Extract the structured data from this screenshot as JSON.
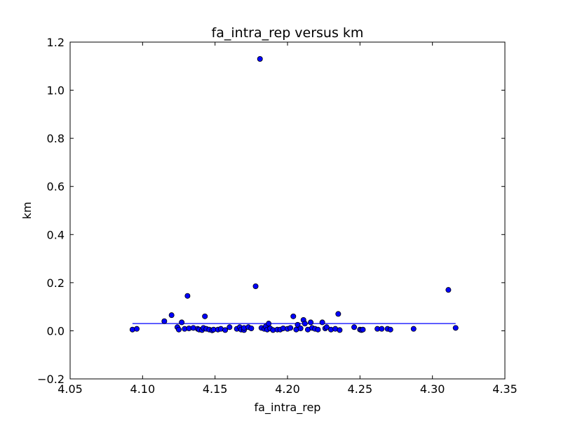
{
  "chart_data": {
    "type": "scatter",
    "title": "fa_intra_rep versus km",
    "xlabel": "fa_intra_rep",
    "ylabel": "km",
    "xlim": [
      4.05,
      4.35
    ],
    "ylim": [
      -0.2,
      1.2
    ],
    "x_ticks": [
      "4.05",
      "4.10",
      "4.15",
      "4.20",
      "4.25",
      "4.30",
      "4.35"
    ],
    "y_ticks": [
      "−0.2",
      "0.0",
      "0.2",
      "0.4",
      "0.6",
      "0.8",
      "1.0",
      "1.2"
    ],
    "grid": false,
    "marker_color": "#0000ff",
    "line_color": "#0000ff",
    "fit_line": {
      "x": [
        4.093,
        4.316
      ],
      "y": [
        0.03,
        0.03
      ]
    },
    "points": [
      [
        4.093,
        0.005
      ],
      [
        4.096,
        0.008
      ],
      [
        4.115,
        0.04
      ],
      [
        4.12,
        0.065
      ],
      [
        4.124,
        0.015
      ],
      [
        4.125,
        0.005
      ],
      [
        4.127,
        0.035
      ],
      [
        4.129,
        0.008
      ],
      [
        4.131,
        0.145
      ],
      [
        4.132,
        0.01
      ],
      [
        4.135,
        0.012
      ],
      [
        4.138,
        0.008
      ],
      [
        4.139,
        0.005
      ],
      [
        4.141,
        0.003
      ],
      [
        4.142,
        0.012
      ],
      [
        4.143,
        0.06
      ],
      [
        4.144,
        0.008
      ],
      [
        4.146,
        0.005
      ],
      [
        4.148,
        0.002
      ],
      [
        4.149,
        0.005
      ],
      [
        4.152,
        0.005
      ],
      [
        4.154,
        0.008
      ],
      [
        4.157,
        0.003
      ],
      [
        4.16,
        0.015
      ],
      [
        4.165,
        0.008
      ],
      [
        4.167,
        0.015
      ],
      [
        4.168,
        0.005
      ],
      [
        4.17,
        0.003
      ],
      [
        4.17,
        0.012
      ],
      [
        4.173,
        0.015
      ],
      [
        4.175,
        0.01
      ],
      [
        4.178,
        0.185
      ],
      [
        4.181,
        1.13
      ],
      [
        4.182,
        0.012
      ],
      [
        4.184,
        0.008
      ],
      [
        4.185,
        0.018
      ],
      [
        4.186,
        0.005
      ],
      [
        4.187,
        0.03
      ],
      [
        4.188,
        0.01
      ],
      [
        4.19,
        0.003
      ],
      [
        4.193,
        0.005
      ],
      [
        4.195,
        0.005
      ],
      [
        4.197,
        0.01
      ],
      [
        4.2,
        0.008
      ],
      [
        4.202,
        0.012
      ],
      [
        4.204,
        0.06
      ],
      [
        4.206,
        0.005
      ],
      [
        4.207,
        0.025
      ],
      [
        4.209,
        0.01
      ],
      [
        4.211,
        0.045
      ],
      [
        4.212,
        0.03
      ],
      [
        4.214,
        0.005
      ],
      [
        4.216,
        0.035
      ],
      [
        4.217,
        0.012
      ],
      [
        4.219,
        0.008
      ],
      [
        4.221,
        0.005
      ],
      [
        4.224,
        0.035
      ],
      [
        4.226,
        0.01
      ],
      [
        4.227,
        0.015
      ],
      [
        4.23,
        0.005
      ],
      [
        4.233,
        0.008
      ],
      [
        4.235,
        0.07
      ],
      [
        4.236,
        0.003
      ],
      [
        4.246,
        0.015
      ],
      [
        4.25,
        0.005
      ],
      [
        4.251,
        0.003
      ],
      [
        4.252,
        0.005
      ],
      [
        4.262,
        0.008
      ],
      [
        4.265,
        0.008
      ],
      [
        4.269,
        0.008
      ],
      [
        4.271,
        0.005
      ],
      [
        4.287,
        0.008
      ],
      [
        4.311,
        0.17
      ],
      [
        4.316,
        0.012
      ]
    ]
  }
}
